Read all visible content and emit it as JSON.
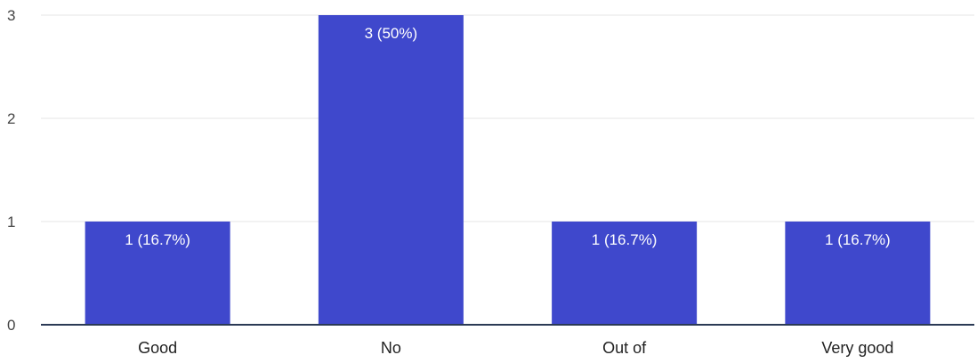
{
  "chart_data": {
    "type": "bar",
    "title": "",
    "xlabel": "",
    "ylabel": "",
    "categories": [
      "Good",
      "No",
      "Out of",
      "Very good"
    ],
    "values": [
      1,
      3,
      1,
      1
    ],
    "data_labels": [
      "1 (16.7%)",
      "3 (50%)",
      "1 (16.7%)",
      "1 (16.7%)"
    ],
    "yticks": [
      "0",
      "1",
      "2",
      "3"
    ],
    "ylim": [
      0,
      3
    ],
    "grid": true,
    "legend": "none",
    "bar_color": "#3f48cc"
  }
}
